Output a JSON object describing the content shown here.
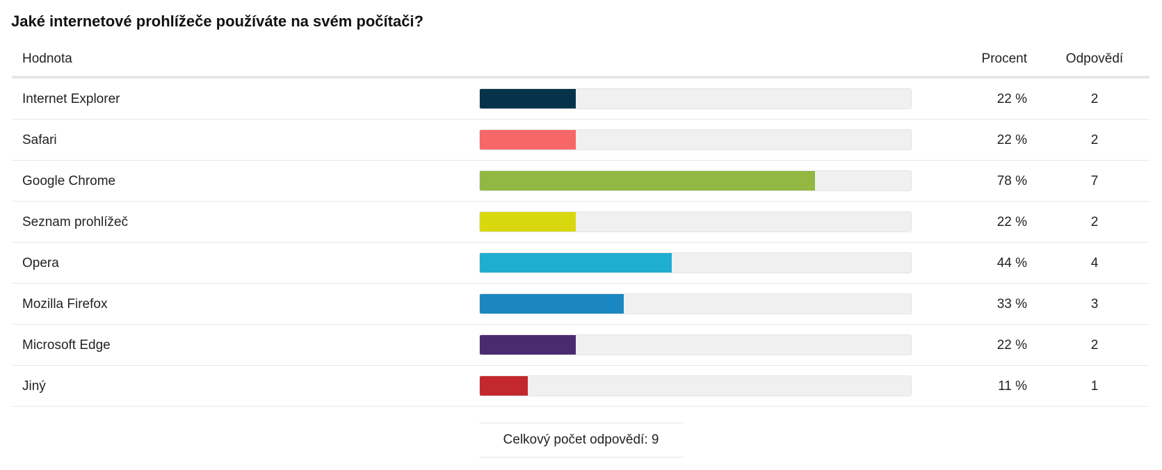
{
  "question": "Jaké internetové prohlížeče používáte na svém počítači?",
  "header": {
    "value": "Hodnota",
    "percent": "Procent",
    "count": "Odpovědí"
  },
  "rows": [
    {
      "label": "Internet Explorer",
      "percent_text": "22 %",
      "count_text": "2",
      "fraction": 0.2222,
      "color": "#06334a"
    },
    {
      "label": "Safari",
      "percent_text": "22 %",
      "count_text": "2",
      "fraction": 0.2222,
      "color": "#f76767"
    },
    {
      "label": "Google Chrome",
      "percent_text": "78 %",
      "count_text": "7",
      "fraction": 0.7778,
      "color": "#92b843"
    },
    {
      "label": "Seznam prohlížeč",
      "percent_text": "22 %",
      "count_text": "2",
      "fraction": 0.2222,
      "color": "#d9d80f"
    },
    {
      "label": "Opera",
      "percent_text": "44 %",
      "count_text": "4",
      "fraction": 0.4444,
      "color": "#1faed0"
    },
    {
      "label": "Mozilla Firefox",
      "percent_text": "33 %",
      "count_text": "3",
      "fraction": 0.3333,
      "color": "#1a87c0"
    },
    {
      "label": "Microsoft Edge",
      "percent_text": "22 %",
      "count_text": "2",
      "fraction": 0.2222,
      "color": "#4a2a70"
    },
    {
      "label": "Jiný",
      "percent_text": "11 %",
      "count_text": "1",
      "fraction": 0.1111,
      "color": "#c4282f"
    }
  ],
  "total": {
    "text": "Celkový počet odpovědí:  9"
  },
  "chart_data": {
    "type": "bar",
    "orientation": "horizontal",
    "title": "Jaké internetové prohlížeče používáte na svém počítači?",
    "categories": [
      "Internet Explorer",
      "Safari",
      "Google Chrome",
      "Seznam prohlížeč",
      "Opera",
      "Mozilla Firefox",
      "Microsoft Edge",
      "Jiný"
    ],
    "values": [
      22,
      22,
      78,
      22,
      44,
      33,
      22,
      11
    ],
    "counts": [
      2,
      2,
      7,
      2,
      4,
      3,
      2,
      1
    ],
    "xlim": [
      0,
      100
    ],
    "grid": false,
    "colors": [
      "#06334a",
      "#f76767",
      "#92b843",
      "#d9d80f",
      "#1faed0",
      "#1a87c0",
      "#4a2a70",
      "#c4282f"
    ]
  }
}
